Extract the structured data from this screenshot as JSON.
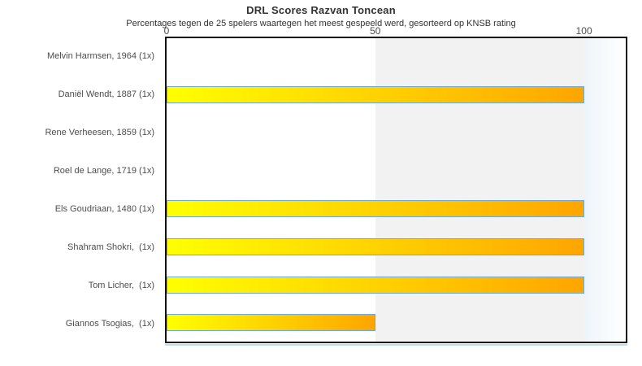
{
  "chart_data": {
    "type": "bar",
    "orientation": "horizontal",
    "title": "DRL Scores Razvan Toncean",
    "subtitle": "Percentages tegen de 25 spelers waartegen het meest gespeeld werd, gesorteerd op KNSB rating",
    "categories": [
      "Melvin Harmsen, 1964 (1x)",
      "Daniël Wendt, 1887 (1x)",
      "Rene Verheesen, 1859 (1x)",
      "Roel de Lange, 1719 (1x)",
      "Els Goudriaan, 1480 (1x)",
      "Shahram Shokri,  (1x)",
      "Tom Licher,  (1x)",
      "Giannos Tsogias,  (1x)"
    ],
    "values": [
      0,
      100,
      0,
      0,
      100,
      100,
      100,
      50
    ],
    "unit": "percent",
    "xlim": [
      0,
      110
    ],
    "ticks": [
      0,
      50,
      100
    ],
    "tick_labels": [
      "0",
      "50",
      "100"
    ],
    "legend": "none",
    "grid": "off",
    "bands": [
      {
        "from": 50,
        "to": 100,
        "type": "solid"
      },
      {
        "from": 100,
        "to": 110,
        "type": "gradient"
      }
    ],
    "styles": {
      "bar_gradient": [
        "#ffff00",
        "#ffa500"
      ],
      "bar_border_color": "#6fa8dc",
      "plot_border_color": "#111111",
      "band_color": "#f2f2f2",
      "overflow_gradient": [
        "#eef5fa",
        "#ffffff"
      ],
      "shadow_line_color": "#bfe0ec",
      "title_color": "#333333",
      "text_color": "#4d4d4d"
    }
  }
}
